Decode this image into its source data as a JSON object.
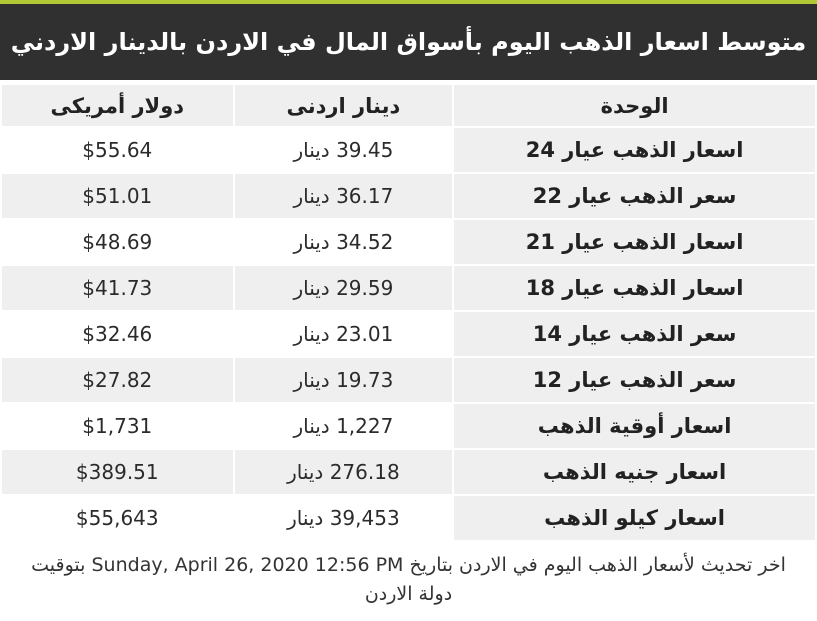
{
  "theme": {
    "accent_line_color": "#b2c935",
    "title_bar_bg": "#303030",
    "title_text_color": "#ffffff",
    "shaded_cell_color": "#efefef"
  },
  "header": {
    "title": "متوسط اسعار الذهب اليوم بأسواق المال في الاردن بالدينار الاردني"
  },
  "table": {
    "columns": [
      {
        "key": "unit",
        "label": "الوحدة"
      },
      {
        "key": "dinar",
        "label": "دينار اردنى"
      },
      {
        "key": "dollar",
        "label": "دولار أمريكى"
      }
    ],
    "rows": [
      {
        "unit": "اسعار الذهب عيار 24",
        "dinar": "39.45 دينار",
        "dollar": "$55.64"
      },
      {
        "unit": "سعر الذهب عيار 22",
        "dinar": "36.17 دينار",
        "dollar": "$51.01"
      },
      {
        "unit": "اسعار الذهب عيار 21",
        "dinar": "34.52 دينار",
        "dollar": "$48.69"
      },
      {
        "unit": "اسعار الذهب عيار 18",
        "dinar": "29.59 دينار",
        "dollar": "$41.73"
      },
      {
        "unit": "سعر الذهب عيار 14",
        "dinar": "23.01 دينار",
        "dollar": "$32.46"
      },
      {
        "unit": "سعر الذهب عيار 12",
        "dinar": "19.73 دينار",
        "dollar": "$27.82"
      },
      {
        "unit": "اسعار أوقية الذهب",
        "dinar": "1,227 دينار",
        "dollar": "$1,731"
      },
      {
        "unit": "اسعار جنيه الذهب",
        "dinar": "276.18 دينار",
        "dollar": "$389.51"
      },
      {
        "unit": "اسعار كيلو الذهب",
        "dinar": "39,453 دينار",
        "dollar": "$55,643"
      }
    ]
  },
  "footer": {
    "text": "اخر تحديث لأسعار الذهب اليوم في الاردن بتاريخ Sunday, April 26, 2020 12:56 PM بتوقيت دولة الاردن"
  }
}
